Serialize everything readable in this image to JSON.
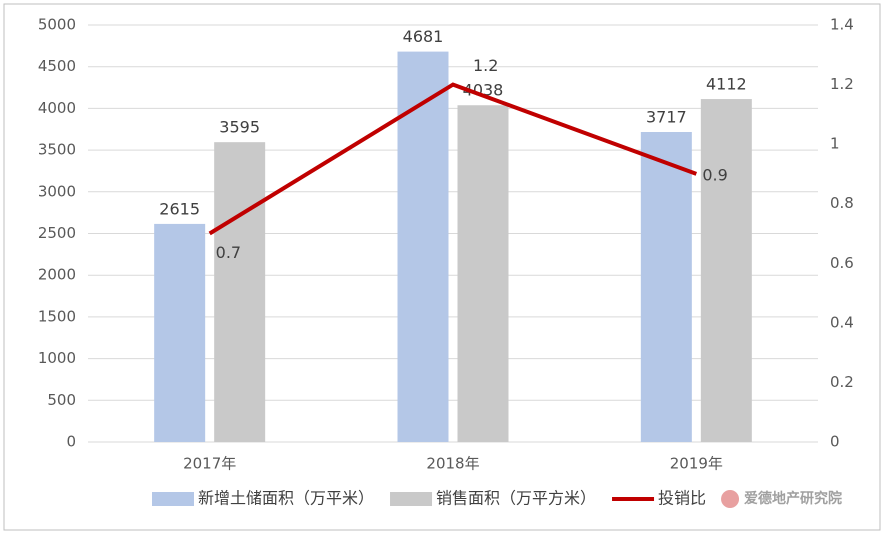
{
  "chart_data": {
    "type": "bar",
    "categories": [
      "2017年",
      "2018年",
      "2019年"
    ],
    "series": [
      {
        "name": "新增土储面积（万平米）",
        "color": "#b4c7e7",
        "values": [
          2615,
          4681,
          3717
        ]
      },
      {
        "name": "销售面积（万平方米）",
        "color": "#c9c9c9",
        "values": [
          3595,
          4038,
          4112
        ]
      },
      {
        "name": "投销比",
        "color": "#c00000",
        "type": "line",
        "axis": "y2",
        "values": [
          0.7,
          1.2,
          0.9
        ]
      }
    ],
    "ylim": [
      0,
      5000
    ],
    "yticks": [
      0,
      500,
      1000,
      1500,
      2000,
      2500,
      3000,
      3500,
      4000,
      4500,
      5000
    ],
    "y2lim": [
      0,
      1.4
    ],
    "y2ticks": [
      0,
      0.2,
      0.4,
      0.6,
      0.8,
      1,
      1.2,
      1.4
    ],
    "legend": "bottom",
    "watermark": "爱德地产研究院"
  }
}
